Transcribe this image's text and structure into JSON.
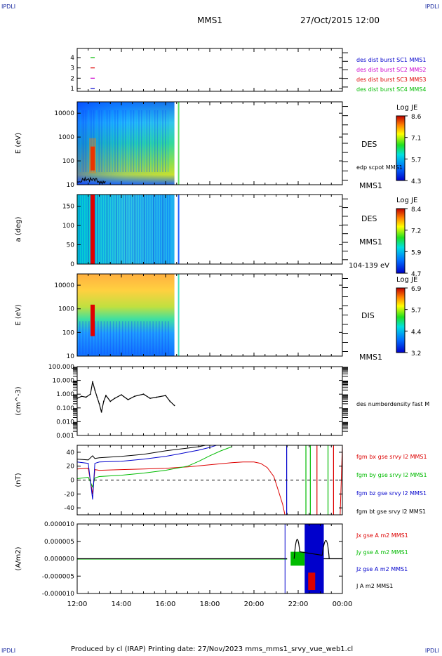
{
  "corners": {
    "top_left": "IPDLI",
    "top_right": "IPDLI",
    "bottom_left": "IPDLI",
    "bottom_right": "IPDLI"
  },
  "header": {
    "title": "MMS1",
    "datetime": "27/Oct/2015 12:00"
  },
  "footer": {
    "text": "Produced by cl (IRAP)   Printing date: 27/Nov/2023   mms_mms1_srvy_vue_web1.cl"
  },
  "colors": {
    "mms1": "#0000cc",
    "mms2": "#cc00cc",
    "mms3": "#dd0000",
    "mms4": "#00bb00",
    "bx": "#dd0000",
    "by": "#00bb00",
    "bz": "#0000cc",
    "bt": "#000000"
  },
  "chart_data": [
    {
      "type": "scatter",
      "name": "burst-availability",
      "y_ticks": [
        "4",
        "3",
        "2",
        "1"
      ],
      "marks": [
        {
          "y": 4,
          "color": "#00bb00"
        },
        {
          "y": 3,
          "color": "#dd0000"
        },
        {
          "y": 2,
          "color": "#cc00cc"
        },
        {
          "y": 1,
          "color": "#0000cc"
        }
      ],
      "mark_time_h": 12.7,
      "legend": [
        "des dist burst SC1 MMS1",
        "des dist burst SC2 MMS2",
        "des dist burst SC3 MMS3",
        "des dist burst SC4 MMS4"
      ],
      "legend_colors": [
        "#0000cc",
        "#cc00cc",
        "#dd0000",
        "#00bb00"
      ]
    },
    {
      "type": "heatmap",
      "name": "des-energy-spectrogram",
      "ylabel": "E (eV)",
      "y_scale": "log",
      "ylim": [
        10,
        30000
      ],
      "y_ticks": [
        "10000",
        "1000",
        "100",
        "10"
      ],
      "right_labels": [
        "DES",
        "edp scpot MMS1",
        "MMS1"
      ],
      "colorbar": {
        "title": "Log JE",
        "ticks": [
          "8.6",
          "7.1",
          "5.7",
          "4.3"
        ]
      },
      "data_end_h": 16.4
    },
    {
      "type": "heatmap",
      "name": "des-pitch-angle",
      "ylabel": "a (deg)",
      "ylim": [
        0,
        180
      ],
      "y_ticks": [
        "150",
        "100",
        "50",
        "0"
      ],
      "right_labels": [
        "DES",
        "MMS1",
        "104-139 eV"
      ],
      "colorbar": {
        "title": "Log JE",
        "ticks": [
          "8.4",
          "7.2",
          "5.9",
          "4.7"
        ]
      },
      "data_end_h": 16.4
    },
    {
      "type": "heatmap",
      "name": "dis-energy-spectrogram",
      "ylabel": "E (eV)",
      "y_scale": "log",
      "ylim": [
        10,
        30000
      ],
      "y_ticks": [
        "10000",
        "1000",
        "100",
        "10"
      ],
      "right_labels": [
        "DIS",
        "MMS1"
      ],
      "colorbar": {
        "title": "Log JE",
        "ticks": [
          "6.9",
          "5.7",
          "4.4",
          "3.2"
        ]
      },
      "data_end_h": 16.4
    },
    {
      "type": "line",
      "name": "number-density",
      "ylabel": "(cm^-3)",
      "y_scale": "log",
      "ylim": [
        0.001,
        100
      ],
      "y_ticks": [
        "100.000",
        "10.000",
        "1.000",
        "0.100",
        "0.010",
        "0.001"
      ],
      "legend": [
        "des numberdensity fast M"
      ],
      "x": [
        12.0,
        12.2,
        12.4,
        12.6,
        12.7,
        12.8,
        12.9,
        13.0,
        13.1,
        13.2,
        13.3,
        13.5,
        13.7,
        14.0,
        14.3,
        14.6,
        15.0,
        15.3,
        15.6,
        16.0,
        16.2,
        16.4
      ],
      "y": [
        0.5,
        0.7,
        0.6,
        1.0,
        8.0,
        2.0,
        0.6,
        0.2,
        0.05,
        0.3,
        0.8,
        0.3,
        0.5,
        0.9,
        0.4,
        0.7,
        1.0,
        0.5,
        0.6,
        0.8,
        0.3,
        0.15
      ]
    },
    {
      "type": "line",
      "name": "magnetic-field",
      "ylabel": "(nT)",
      "ylim": [
        -50,
        50
      ],
      "y_ticks": [
        "40",
        "20",
        "0",
        "-20",
        "-40"
      ],
      "zero_line": true,
      "legend": [
        "fgm bx gse srvy l2 MMS1",
        "fgm by gse srvy l2 MMS1",
        "fgm bz gse srvy l2 MMS1",
        "fgm bt gse srvy l2 MMS1"
      ],
      "series": [
        {
          "name": "fgm bx gse srvy l2 MMS1",
          "color": "#dd0000",
          "x": [
            12.0,
            12.5,
            12.7,
            12.8,
            13.0,
            14.0,
            15.0,
            16.0,
            17.0,
            18.0,
            19.0,
            19.5,
            20.0,
            20.3,
            20.6,
            20.9,
            21.1,
            21.3,
            21.4
          ],
          "y": [
            16,
            17,
            -20,
            15,
            14,
            15,
            16,
            17,
            19,
            22,
            25,
            26,
            26,
            24,
            18,
            5,
            -15,
            -35,
            -50
          ]
        },
        {
          "name": "fgm by gse srvy l2 MMS1",
          "color": "#00bb00",
          "x": [
            12.0,
            12.5,
            12.7,
            12.8,
            13.0,
            14.0,
            15.0,
            16.0,
            17.0,
            17.5,
            18.0,
            18.5,
            19.0
          ],
          "y": [
            2,
            4,
            -10,
            3,
            5,
            7,
            10,
            14,
            20,
            27,
            35,
            42,
            48
          ]
        },
        {
          "name": "fgm bz gse srvy l2 MMS1",
          "color": "#0000cc",
          "x": [
            12.0,
            12.5,
            12.7,
            12.8,
            13.0,
            14.0,
            15.0,
            16.0,
            16.5,
            17.0,
            17.5,
            18.0,
            18.3
          ],
          "y": [
            26,
            24,
            -28,
            24,
            26,
            27,
            30,
            34,
            37,
            40,
            43,
            47,
            50
          ]
        },
        {
          "name": "fgm bt gse srvy l2 MMS1",
          "color": "#000000",
          "x": [
            12.0,
            12.5,
            12.7,
            12.8,
            13.0,
            14.0,
            15.0,
            16.0,
            16.5,
            17.0,
            17.5,
            17.8
          ],
          "y": [
            30,
            29,
            35,
            31,
            32,
            34,
            37,
            42,
            44,
            46,
            48,
            50
          ]
        }
      ]
    },
    {
      "type": "line",
      "name": "current-density",
      "ylabel": "(A/m2)",
      "ylim": [
        -1e-05,
        1e-05
      ],
      "y_ticks": [
        "0.000010",
        "0.000005",
        "0.000000",
        "-0.000005",
        "-0.000010"
      ],
      "legend": [
        "Jx gse A m2 MMS1",
        "Jy gse A m2 MMS1",
        "Jz gse A m2 MMS1",
        "J A m2 MMS1"
      ],
      "legend_colors": [
        "#dd0000",
        "#00bb00",
        "#0000cc",
        "#000000"
      ],
      "activity_start_h": 21.5,
      "activity_end_h": 23.0
    }
  ],
  "x_axis": {
    "labels": [
      "12:00",
      "14:00",
      "16:00",
      "18:00",
      "20:00",
      "22:00",
      "00:00"
    ],
    "range_h": [
      12,
      24
    ]
  }
}
